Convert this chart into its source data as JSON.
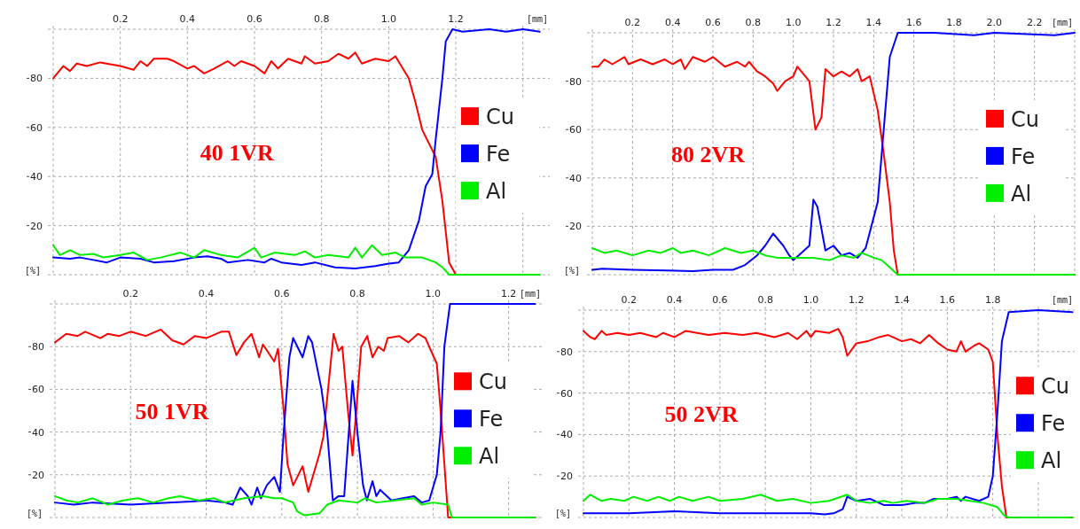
{
  "chart_data": [
    {
      "type": "line",
      "title": "40 1VR",
      "xlabel": "[mm]",
      "ylabel": "[%]",
      "xlim": [
        0,
        1.48
      ],
      "ylim": [
        0,
        100
      ],
      "xticks": [
        0.2,
        0.4,
        0.6,
        0.8,
        {
          "value": 1.0,
          "label": "1.0"
        },
        1.2,
        {
          "value": 1.4,
          "label": null
        }
      ],
      "yticks": [
        20,
        40,
        60,
        80
      ],
      "grid": true,
      "legend": "right",
      "series": [
        {
          "name": "Cu",
          "color": "#ff0000",
          "x": [
            0,
            0.03,
            0.05,
            0.07,
            0.1,
            0.14,
            0.2,
            0.24,
            0.26,
            0.28,
            0.3,
            0.34,
            0.36,
            0.4,
            0.42,
            0.45,
            0.48,
            0.52,
            0.54,
            0.56,
            0.6,
            0.63,
            0.65,
            0.67,
            0.7,
            0.74,
            0.75,
            0.78,
            0.82,
            0.85,
            0.88,
            0.9,
            0.92,
            0.96,
            1.0,
            1.02,
            1.06,
            1.08,
            1.1,
            1.14,
            1.16,
            1.18,
            1.2,
            1.45
          ],
          "values": [
            80,
            85,
            83,
            86,
            85,
            86.5,
            85,
            83.5,
            87,
            85,
            88,
            88,
            87,
            84,
            85,
            82,
            84,
            87,
            85,
            87,
            85,
            82,
            87,
            84,
            88,
            86,
            89,
            86,
            87,
            90,
            88,
            90.5,
            86,
            88,
            87,
            89,
            80,
            70,
            59,
            48,
            30,
            5,
            0,
            0
          ]
        },
        {
          "name": "Fe",
          "color": "#0000ff",
          "x": [
            0,
            0.05,
            0.08,
            0.12,
            0.16,
            0.2,
            0.26,
            0.3,
            0.36,
            0.42,
            0.46,
            0.5,
            0.52,
            0.58,
            0.63,
            0.65,
            0.68,
            0.74,
            0.78,
            0.84,
            0.9,
            0.96,
            1.0,
            1.03,
            1.06,
            1.09,
            1.11,
            1.13,
            1.14,
            1.16,
            1.17,
            1.19,
            1.22,
            1.3,
            1.35,
            1.4,
            1.45
          ],
          "values": [
            7,
            6.5,
            7,
            6,
            5,
            7,
            6.5,
            5,
            5.5,
            7,
            7.5,
            6.5,
            5,
            6,
            5,
            6.5,
            5,
            4,
            5,
            3,
            2.5,
            3.5,
            4.5,
            5,
            10,
            22,
            36,
            41,
            55,
            80,
            95,
            100,
            99,
            100,
            99,
            100,
            99
          ]
        },
        {
          "name": "Al",
          "color": "#00ee00",
          "x": [
            0,
            0.02,
            0.05,
            0.08,
            0.12,
            0.15,
            0.2,
            0.24,
            0.28,
            0.32,
            0.38,
            0.42,
            0.45,
            0.5,
            0.55,
            0.6,
            0.62,
            0.66,
            0.72,
            0.75,
            0.78,
            0.82,
            0.88,
            0.9,
            0.92,
            0.95,
            0.98,
            1.02,
            1.05,
            1.1,
            1.14,
            1.16,
            1.18,
            1.45
          ],
          "values": [
            12,
            8,
            10,
            8,
            8.5,
            7,
            8,
            9,
            6,
            7,
            9,
            7,
            10,
            8,
            7,
            11,
            7,
            9,
            8,
            9.5,
            7,
            8,
            7,
            11,
            7,
            12,
            8,
            9,
            7,
            7,
            5,
            3,
            0,
            0
          ]
        }
      ]
    },
    {
      "type": "line",
      "title": "80 2VR",
      "xlabel": "[mm]",
      "ylabel": "[%]",
      "xlim": [
        0,
        2.4
      ],
      "ylim": [
        0,
        100
      ],
      "xticks": [
        0.2,
        0.4,
        0.6,
        0.8,
        {
          "value": 1.0,
          "label": "1.0"
        },
        1.2,
        1.4,
        1.6,
        1.8,
        {
          "value": 2.0,
          "label": "2.0"
        },
        2.2,
        {
          "value": 2.4,
          "label": null
        }
      ],
      "yticks": [
        20,
        40,
        60,
        80
      ],
      "grid": true,
      "legend": "right",
      "series": [
        {
          "name": "Cu",
          "color": "#ff0000",
          "x": [
            0,
            0.03,
            0.06,
            0.1,
            0.16,
            0.18,
            0.24,
            0.3,
            0.36,
            0.4,
            0.44,
            0.46,
            0.5,
            0.56,
            0.6,
            0.66,
            0.72,
            0.76,
            0.78,
            0.82,
            0.86,
            0.9,
            0.92,
            0.96,
            1.0,
            1.02,
            1.08,
            1.11,
            1.14,
            1.16,
            1.2,
            1.24,
            1.28,
            1.32,
            1.34,
            1.38,
            1.42,
            1.45,
            1.48,
            1.5,
            1.52,
            2.4
          ],
          "values": [
            86,
            86,
            89,
            87,
            90,
            87,
            89,
            87,
            89,
            87,
            89,
            85,
            90,
            88,
            90,
            86,
            88,
            86,
            88,
            84,
            82,
            79,
            76,
            80,
            82,
            86,
            80,
            60,
            65,
            85,
            82,
            84,
            82,
            85,
            80,
            82,
            68,
            50,
            30,
            10,
            0,
            0
          ]
        },
        {
          "name": "Fe",
          "color": "#0000ff",
          "x": [
            0,
            0.05,
            0.2,
            0.5,
            0.6,
            0.7,
            0.76,
            0.82,
            0.86,
            0.9,
            0.95,
            0.98,
            1.0,
            1.04,
            1.08,
            1.1,
            1.12,
            1.16,
            1.2,
            1.24,
            1.28,
            1.32,
            1.36,
            1.42,
            1.45,
            1.48,
            1.52,
            1.7,
            1.9,
            2.0,
            2.3,
            2.4
          ],
          "values": [
            2,
            2.5,
            2,
            1.5,
            2,
            2,
            4,
            8,
            12,
            17,
            12,
            8,
            6,
            9,
            12,
            31,
            28,
            10,
            12,
            8,
            9,
            7,
            11,
            30,
            60,
            90,
            100,
            100,
            99,
            100,
            99,
            100
          ]
        },
        {
          "name": "Al",
          "color": "#00ee00",
          "x": [
            0,
            0.06,
            0.12,
            0.2,
            0.28,
            0.34,
            0.4,
            0.44,
            0.5,
            0.58,
            0.66,
            0.74,
            0.8,
            0.86,
            0.92,
            1.0,
            1.1,
            1.18,
            1.24,
            1.3,
            1.34,
            1.4,
            1.44,
            1.48,
            1.52,
            2.4
          ],
          "values": [
            11,
            9,
            10,
            8,
            10,
            9,
            11,
            9,
            10,
            8,
            11,
            9,
            10,
            8,
            7,
            7,
            7,
            6,
            8,
            7,
            9,
            7,
            6,
            3,
            0,
            0
          ]
        }
      ]
    },
    {
      "type": "line",
      "title": "50 1VR",
      "xlabel": "[mm]",
      "ylabel": "[%]",
      "xlim": [
        0,
        1.29
      ],
      "ylim": [
        0,
        100
      ],
      "xticks": [
        0.2,
        0.4,
        0.6,
        0.8,
        {
          "value": 1.0,
          "label": "1.0"
        },
        1.2
      ],
      "yticks": [
        20,
        40,
        60,
        80
      ],
      "grid": true,
      "legend": "right",
      "series": [
        {
          "name": "Cu",
          "color": "#ff0000",
          "x": [
            0,
            0.03,
            0.06,
            0.08,
            0.12,
            0.14,
            0.17,
            0.2,
            0.24,
            0.28,
            0.31,
            0.34,
            0.37,
            0.4,
            0.44,
            0.46,
            0.48,
            0.5,
            0.52,
            0.54,
            0.55,
            0.58,
            0.59,
            0.605,
            0.615,
            0.63,
            0.655,
            0.67,
            0.7,
            0.71,
            0.737,
            0.75,
            0.76,
            0.775,
            0.787,
            0.797,
            0.81,
            0.826,
            0.84,
            0.855,
            0.87,
            0.88,
            0.91,
            0.935,
            0.96,
            0.98,
            1.01,
            1.02,
            1.04,
            1.27
          ],
          "values": [
            82,
            86,
            85,
            87,
            84,
            86,
            85,
            87,
            85,
            88,
            83,
            81,
            85,
            84,
            87,
            87,
            76,
            82,
            86,
            75,
            81,
            73,
            79,
            50,
            25,
            15,
            24,
            12,
            30,
            38,
            86,
            78,
            80,
            50,
            29,
            50,
            80,
            85,
            75,
            80,
            78,
            84,
            85,
            82,
            86,
            84,
            72,
            50,
            0,
            0
          ]
        },
        {
          "name": "Fe",
          "color": "#0000ff",
          "x": [
            0,
            0.05,
            0.1,
            0.2,
            0.3,
            0.36,
            0.4,
            0.45,
            0.47,
            0.49,
            0.51,
            0.52,
            0.535,
            0.545,
            0.56,
            0.58,
            0.595,
            0.605,
            0.62,
            0.63,
            0.655,
            0.67,
            0.68,
            0.705,
            0.72,
            0.735,
            0.75,
            0.765,
            0.787,
            0.8,
            0.815,
            0.825,
            0.84,
            0.85,
            0.86,
            0.89,
            0.92,
            0.95,
            0.97,
            0.99,
            1.01,
            1.02,
            1.03,
            1.045,
            1.2,
            1.27
          ],
          "values": [
            7,
            6,
            7,
            6,
            7,
            7.5,
            8,
            7,
            6,
            14,
            10,
            6,
            14,
            9,
            15,
            19,
            12,
            40,
            75,
            84,
            75,
            85,
            82,
            60,
            40,
            8,
            10,
            10,
            64,
            40,
            15,
            8,
            17,
            10,
            13,
            8,
            9,
            10,
            7,
            8,
            20,
            40,
            80,
            100,
            100,
            100
          ]
        },
        {
          "name": "Al",
          "color": "#00ee00",
          "x": [
            0,
            0.03,
            0.06,
            0.1,
            0.14,
            0.18,
            0.22,
            0.26,
            0.3,
            0.33,
            0.38,
            0.42,
            0.45,
            0.5,
            0.55,
            0.58,
            0.6,
            0.63,
            0.64,
            0.66,
            0.7,
            0.72,
            0.75,
            0.8,
            0.82,
            0.85,
            0.9,
            0.95,
            0.97,
            1.0,
            1.04,
            1.05,
            1.27
          ],
          "values": [
            10,
            8,
            7,
            9,
            6,
            8,
            9,
            7,
            9,
            10,
            8,
            9,
            7,
            9,
            10,
            9,
            9,
            7,
            3,
            1,
            2,
            6,
            8,
            7,
            9,
            7,
            8,
            9,
            6,
            7,
            6,
            0,
            0
          ]
        }
      ]
    },
    {
      "type": "line",
      "title": "50 2VR",
      "xlabel": "[mm]",
      "ylabel": "[%]",
      "xlim": [
        0,
        2.16
      ],
      "ylim": [
        0,
        100
      ],
      "xticks": [
        0.2,
        0.4,
        0.6,
        0.8,
        {
          "value": 1.0,
          "label": "1.0"
        },
        1.2,
        1.4,
        1.6,
        1.8,
        {
          "value": 2.0,
          "label": null
        }
      ],
      "yticks": [
        20,
        40,
        60,
        80
      ],
      "grid": true,
      "legend": "right",
      "series": [
        {
          "name": "Cu",
          "color": "#ff0000",
          "x": [
            0,
            0.03,
            0.05,
            0.08,
            0.1,
            0.15,
            0.2,
            0.25,
            0.32,
            0.35,
            0.4,
            0.45,
            0.5,
            0.55,
            0.62,
            0.7,
            0.76,
            0.84,
            0.9,
            0.94,
            0.98,
            1.0,
            1.02,
            1.08,
            1.12,
            1.14,
            1.16,
            1.2,
            1.25,
            1.3,
            1.34,
            1.4,
            1.44,
            1.48,
            1.52,
            1.56,
            1.6,
            1.64,
            1.66,
            1.68,
            1.72,
            1.74,
            1.78,
            1.8,
            1.82,
            1.84,
            1.86,
            2.15
          ],
          "values": [
            90,
            87,
            86,
            90,
            88,
            89,
            88,
            89,
            87,
            89,
            87,
            90,
            89,
            88,
            89,
            88,
            89,
            87,
            89,
            86,
            90,
            87,
            90,
            89,
            91,
            87,
            78,
            84,
            85,
            87,
            88,
            85,
            86,
            84,
            88,
            84,
            81,
            80,
            85,
            80,
            83,
            84,
            81,
            75,
            40,
            15,
            0,
            0
          ]
        },
        {
          "name": "Fe",
          "color": "#0000ff",
          "x": [
            0,
            0.2,
            0.4,
            0.6,
            0.8,
            1.0,
            1.06,
            1.1,
            1.14,
            1.16,
            1.2,
            1.26,
            1.32,
            1.4,
            1.46,
            1.5,
            1.54,
            1.6,
            1.64,
            1.66,
            1.68,
            1.74,
            1.78,
            1.8,
            1.82,
            1.84,
            1.87,
            2.0,
            2.15
          ],
          "values": [
            2,
            2,
            3,
            2,
            2,
            2,
            1.5,
            2,
            4,
            10,
            8,
            9,
            6,
            6,
            7,
            7,
            9,
            9,
            10,
            8,
            10,
            8,
            10,
            20,
            50,
            85,
            99,
            100,
            99
          ]
        },
        {
          "name": "Al",
          "color": "#00ee00",
          "x": [
            0,
            0.03,
            0.08,
            0.12,
            0.18,
            0.22,
            0.28,
            0.33,
            0.38,
            0.42,
            0.48,
            0.55,
            0.6,
            0.7,
            0.78,
            0.85,
            0.92,
            1.0,
            1.08,
            1.16,
            1.2,
            1.26,
            1.32,
            1.36,
            1.42,
            1.5,
            1.56,
            1.64,
            1.7,
            1.76,
            1.82,
            1.85,
            1.87,
            2.15
          ],
          "values": [
            8,
            11,
            8,
            9,
            8,
            10,
            8,
            10,
            8,
            10,
            8,
            10,
            8,
            9,
            11,
            8,
            9,
            7,
            8,
            11,
            8,
            7,
            8,
            7,
            8,
            7,
            9,
            9,
            8,
            7,
            5,
            1,
            0,
            0
          ]
        }
      ]
    }
  ]
}
